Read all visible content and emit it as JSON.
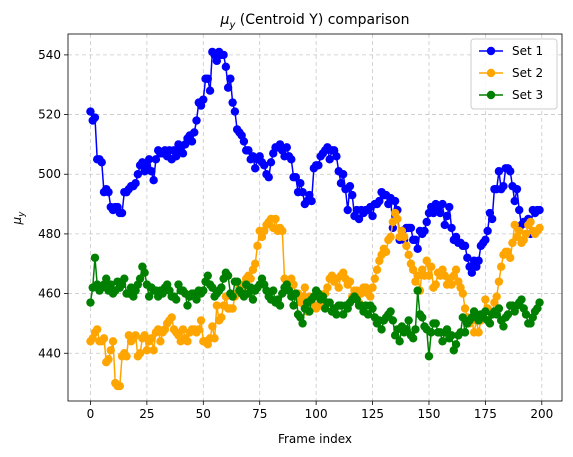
{
  "chart_data": {
    "type": "line",
    "title_main": "μ",
    "title_sub": "y",
    "title_rest": " (Centroid Y) comparison",
    "xlabel": "Frame index",
    "ylabel_main": "μ",
    "ylabel_sub": "y",
    "xlim": [
      -9.95,
      208.95
    ],
    "ylim": [
      424.0,
      547.0
    ],
    "xticks": [
      0,
      25,
      50,
      75,
      100,
      125,
      150,
      175,
      200
    ],
    "yticks": [
      440,
      460,
      480,
      500,
      520,
      540
    ],
    "grid": true,
    "legend_position": "top-right",
    "x": [
      0,
      1,
      2,
      3,
      4,
      5,
      6,
      7,
      8,
      9,
      10,
      11,
      12,
      13,
      14,
      15,
      16,
      17,
      18,
      19,
      20,
      21,
      22,
      23,
      24,
      25,
      26,
      27,
      28,
      29,
      30,
      31,
      32,
      33,
      34,
      35,
      36,
      37,
      38,
      39,
      40,
      41,
      42,
      43,
      44,
      45,
      46,
      47,
      48,
      49,
      50,
      51,
      52,
      53,
      54,
      55,
      56,
      57,
      58,
      59,
      60,
      61,
      62,
      63,
      64,
      65,
      66,
      67,
      68,
      69,
      70,
      71,
      72,
      73,
      74,
      75,
      76,
      77,
      78,
      79,
      80,
      81,
      82,
      83,
      84,
      85,
      86,
      87,
      88,
      89,
      90,
      91,
      92,
      93,
      94,
      95,
      96,
      97,
      98,
      99,
      100,
      101,
      102,
      103,
      104,
      105,
      106,
      107,
      108,
      109,
      110,
      111,
      112,
      113,
      114,
      115,
      116,
      117,
      118,
      119,
      120,
      121,
      122,
      123,
      124,
      125,
      126,
      127,
      128,
      129,
      130,
      131,
      132,
      133,
      134,
      135,
      136,
      137,
      138,
      139,
      140,
      141,
      142,
      143,
      144,
      145,
      146,
      147,
      148,
      149,
      150,
      151,
      152,
      153,
      154,
      155,
      156,
      157,
      158,
      159,
      160,
      161,
      162,
      163,
      164,
      165,
      166,
      167,
      168,
      169,
      170,
      171,
      172,
      173,
      174,
      175,
      176,
      177,
      178,
      179,
      180,
      181,
      182,
      183,
      184,
      185,
      186,
      187,
      188,
      189,
      190,
      191,
      192,
      193,
      194,
      195,
      196,
      197,
      198,
      199
    ],
    "series": [
      {
        "name": "Set 1",
        "color": "#0000ff",
        "values": [
          521,
          518,
          519,
          505,
          505,
          504,
          494,
          495,
          494,
          489,
          488,
          489,
          489,
          487,
          487,
          494,
          494,
          495,
          496,
          496,
          497,
          500,
          503,
          504,
          501,
          503,
          505,
          501,
          498,
          505,
          508,
          507,
          507,
          508,
          506,
          508,
          505,
          508,
          506,
          510,
          508,
          507,
          510,
          512,
          513,
          511,
          514,
          518,
          524,
          523,
          525,
          532,
          532,
          528,
          541,
          540,
          538,
          541,
          540,
          540,
          536,
          529,
          532,
          524,
          521,
          515,
          514,
          513,
          511,
          508,
          508,
          505,
          506,
          502,
          505,
          506,
          504,
          503,
          500,
          499,
          504,
          507,
          509,
          509,
          510,
          508,
          506,
          509,
          506,
          505,
          499,
          499,
          494,
          497,
          494,
          490,
          491,
          493,
          491,
          502,
          503,
          503,
          506,
          507,
          508,
          509,
          505,
          508,
          508,
          506,
          501,
          497,
          500,
          495,
          488,
          496,
          493,
          486,
          488,
          485,
          488,
          487,
          488,
          488,
          489,
          486,
          490,
          490,
          491,
          494,
          493,
          493,
          490,
          492,
          482,
          491,
          488,
          478,
          481,
          478,
          482,
          482,
          482,
          478,
          478,
          475,
          481,
          480,
          481,
          484,
          487,
          489,
          487,
          490,
          488,
          487,
          490,
          483,
          486,
          489,
          482,
          478,
          479,
          477,
          477,
          476,
          476,
          472,
          469,
          467,
          471,
          469,
          471,
          476,
          477,
          478,
          481,
          487,
          485,
          495,
          495,
          501,
          495,
          496,
          502,
          502,
          501,
          496,
          491,
          495,
          488,
          483,
          484,
          484,
          485,
          480,
          488,
          487,
          488,
          488
        ]
      },
      {
        "name": "Set 2",
        "color": "#ffa500",
        "values": [
          444,
          445,
          447,
          448,
          444,
          444,
          445,
          437,
          438,
          441,
          444,
          430,
          429,
          429,
          439,
          440,
          439,
          446,
          444,
          445,
          446,
          439,
          440,
          445,
          446,
          441,
          444,
          445,
          441,
          447,
          448,
          444,
          447,
          448,
          450,
          451,
          452,
          448,
          447,
          446,
          444,
          448,
          445,
          444,
          447,
          448,
          448,
          447,
          448,
          451,
          444,
          444,
          443,
          445,
          449,
          445,
          456,
          451,
          452,
          456,
          459,
          455,
          455,
          455,
          459,
          460,
          462,
          461,
          463,
          465,
          466,
          465,
          468,
          470,
          476,
          481,
          479,
          481,
          483,
          484,
          485,
          482,
          485,
          481,
          482,
          481,
          465,
          464,
          463,
          465,
          463,
          459,
          460,
          457,
          459,
          462,
          454,
          459,
          455,
          456,
          455,
          459,
          456,
          458,
          460,
          462,
          465,
          466,
          464,
          465,
          462,
          466,
          467,
          465,
          463,
          464,
          459,
          461,
          461,
          457,
          460,
          462,
          462,
          460,
          459,
          462,
          465,
          468,
          471,
          473,
          475,
          474,
          478,
          479,
          484,
          487,
          485,
          479,
          481,
          479,
          476,
          473,
          470,
          468,
          464,
          466,
          461,
          468,
          466,
          471,
          466,
          469,
          462,
          463,
          467,
          466,
          468,
          466,
          463,
          465,
          463,
          466,
          468,
          464,
          462,
          460,
          455,
          452,
          450,
          451,
          447,
          451,
          447,
          451,
          453,
          458,
          455,
          450,
          453,
          457,
          459,
          464,
          469,
          473,
          474,
          474,
          472,
          477,
          483,
          479,
          481,
          477,
          478,
          480,
          483,
          484,
          481,
          480,
          481,
          482
        ]
      },
      {
        "name": "Set 3",
        "color": "#008000",
        "values": [
          457,
          462,
          472,
          463,
          461,
          462,
          463,
          465,
          461,
          463,
          460,
          461,
          464,
          462,
          463,
          465,
          460,
          460,
          462,
          459,
          461,
          463,
          465,
          469,
          467,
          463,
          459,
          462,
          461,
          461,
          459,
          461,
          460,
          462,
          463,
          461,
          459,
          459,
          458,
          463,
          461,
          461,
          460,
          456,
          459,
          460,
          460,
          458,
          461,
          460,
          461,
          464,
          466,
          463,
          462,
          459,
          460,
          461,
          462,
          465,
          467,
          466,
          460,
          459,
          464,
          464,
          461,
          460,
          459,
          463,
          460,
          462,
          458,
          461,
          462,
          463,
          465,
          463,
          461,
          459,
          458,
          461,
          457,
          458,
          456,
          460,
          462,
          463,
          461,
          459,
          456,
          460,
          453,
          452,
          450,
          455,
          457,
          454,
          458,
          459,
          461,
          460,
          458,
          459,
          455,
          457,
          457,
          454,
          455,
          453,
          456,
          456,
          453,
          456,
          455,
          457,
          458,
          459,
          458,
          456,
          456,
          454,
          456,
          453,
          456,
          455,
          452,
          450,
          451,
          448,
          451,
          452,
          453,
          454,
          451,
          446,
          448,
          444,
          449,
          447,
          448,
          451,
          446,
          445,
          448,
          461,
          453,
          452,
          449,
          448,
          439,
          447,
          450,
          450,
          447,
          447,
          444,
          447,
          448,
          445,
          446,
          441,
          443,
          446,
          447,
          452,
          447,
          450,
          451,
          452,
          454,
          453,
          451,
          453,
          452,
          454,
          451,
          450,
          453,
          454,
          453,
          455,
          451,
          449,
          452,
          453,
          456,
          456,
          454,
          456,
          457,
          458,
          455,
          453,
          450,
          450,
          452,
          454,
          455,
          457
        ]
      }
    ]
  }
}
